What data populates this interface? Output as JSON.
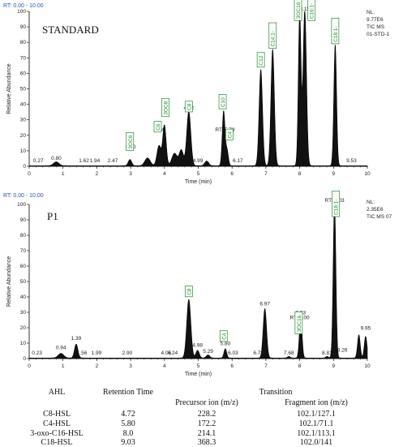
{
  "chart_data": [
    {
      "type": "line",
      "rt_range": "RT: 0.00 - 10.00",
      "title": "STANDARD",
      "info": [
        "NL:",
        "9.77E6",
        "TIC  MS",
        "01-STD-1"
      ],
      "xlabel": "Time (min)",
      "ylabel": "Relative Abundance",
      "xlim": [
        0,
        10
      ],
      "ylim": [
        0,
        100
      ],
      "xticks": [
        0,
        1,
        2,
        3,
        4,
        5,
        6,
        7,
        8,
        9,
        10
      ],
      "yticks": [
        0,
        10,
        20,
        30,
        40,
        50,
        60,
        70,
        80,
        90,
        100
      ],
      "rt_labels": [
        {
          "x": 0.27,
          "y": 1,
          "text": "0.27"
        },
        {
          "x": 0.8,
          "y": 2.5,
          "text": "0.80"
        },
        {
          "x": 1.62,
          "y": 1,
          "text": "1.62"
        },
        {
          "x": 1.94,
          "y": 1,
          "text": "1.94"
        },
        {
          "x": 2.47,
          "y": 1,
          "text": "2.47"
        },
        {
          "x": 3.0,
          "y": 10,
          "text": "3.00"
        },
        {
          "x": 3.84,
          "y": 21,
          "text": "3.84"
        },
        {
          "x": 4.72,
          "y": 35,
          "text": "4.72"
        },
        {
          "x": 4.99,
          "y": 1,
          "text": "4.99"
        },
        {
          "x": 5.79,
          "y": 21,
          "text": "RT: 5.79"
        },
        {
          "x": 6.17,
          "y": 1,
          "text": "6.17"
        },
        {
          "x": 8.15,
          "y": 99,
          "text": "8.15"
        },
        {
          "x": 9.53,
          "y": 1,
          "text": "9.53"
        }
      ],
      "compound_labels": [
        {
          "x": 2.98,
          "y": 8,
          "text": "3OC6"
        },
        {
          "x": 3.8,
          "y": 20,
          "text": "C6"
        },
        {
          "x": 4.03,
          "y": 30,
          "text": "3OC8"
        },
        {
          "x": 4.72,
          "y": 33,
          "text": "C8"
        },
        {
          "x": 5.72,
          "y": 35,
          "text": "C10"
        },
        {
          "x": 5.92,
          "y": 15,
          "text": "C4"
        },
        {
          "x": 6.85,
          "y": 62,
          "text": "C12"
        },
        {
          "x": 7.2,
          "y": 74,
          "text": "C14:1-"
        },
        {
          "x": 7.95,
          "y": 92,
          "text": "3OC16"
        },
        {
          "x": 8.35,
          "y": 92,
          "text": "C16:1-"
        },
        {
          "x": 9.05,
          "y": 77,
          "text": "C18:1-"
        }
      ],
      "peaks": [
        {
          "rt": 0.8,
          "height": 2.5,
          "width": 0.08
        },
        {
          "rt": 2.98,
          "height": 4,
          "width": 0.05
        },
        {
          "rt": 3.5,
          "height": 5,
          "width": 0.08
        },
        {
          "rt": 3.84,
          "height": 13,
          "width": 0.06
        },
        {
          "rt": 4.0,
          "height": 26,
          "width": 0.05
        },
        {
          "rt": 4.3,
          "height": 8,
          "width": 0.08
        },
        {
          "rt": 4.5,
          "height": 10,
          "width": 0.06
        },
        {
          "rt": 4.72,
          "height": 35,
          "width": 0.06
        },
        {
          "rt": 5.25,
          "height": 3,
          "width": 0.06
        },
        {
          "rt": 5.75,
          "height": 35,
          "width": 0.04
        },
        {
          "rt": 5.85,
          "height": 10,
          "width": 0.04
        },
        {
          "rt": 6.85,
          "height": 62,
          "width": 0.05
        },
        {
          "rt": 7.2,
          "height": 75,
          "width": 0.05
        },
        {
          "rt": 8.0,
          "height": 98,
          "width": 0.04
        },
        {
          "rt": 8.15,
          "height": 100,
          "width": 0.05
        },
        {
          "rt": 9.05,
          "height": 78,
          "width": 0.04
        }
      ]
    },
    {
      "type": "line",
      "rt_range": "RT: 0.00 - 10.00",
      "title": "P1",
      "info": [
        "NL:",
        "2.35E6",
        "TIC  MS 07"
      ],
      "xlabel": "Time (min)",
      "ylabel": "Relative Abundance",
      "xlim": [
        0,
        10
      ],
      "ylim": [
        0,
        100
      ],
      "xticks": [
        0,
        1,
        2,
        3,
        4,
        5,
        6,
        7,
        8,
        9,
        10
      ],
      "yticks": [
        0,
        10,
        20,
        30,
        40,
        50,
        60,
        70,
        80,
        90,
        100
      ],
      "rt_labels": [
        {
          "x": 0.23,
          "y": 1,
          "text": "0.23"
        },
        {
          "x": 0.94,
          "y": 4.5,
          "text": "0.94"
        },
        {
          "x": 1.39,
          "y": 10.5,
          "text": "1.39"
        },
        {
          "x": 1.56,
          "y": 1,
          "text": "1.56"
        },
        {
          "x": 1.99,
          "y": 1,
          "text": "1.99"
        },
        {
          "x": 2.9,
          "y": 1,
          "text": "2.90"
        },
        {
          "x": 4.05,
          "y": 1,
          "text": "4.05"
        },
        {
          "x": 4.24,
          "y": 1,
          "text": "4.24"
        },
        {
          "x": 4.98,
          "y": 6,
          "text": "4.98"
        },
        {
          "x": 5.29,
          "y": 2,
          "text": "5.29"
        },
        {
          "x": 5.8,
          "y": 7,
          "text": "5.80"
        },
        {
          "x": 6.03,
          "y": 1,
          "text": "6.03"
        },
        {
          "x": 6.78,
          "y": 1,
          "text": "6.78"
        },
        {
          "x": 6.97,
          "y": 33,
          "text": "6.97"
        },
        {
          "x": 7.68,
          "y": 1,
          "text": "7.68"
        },
        {
          "x": 8.0,
          "y": 24,
          "text": "RT: 8.00"
        },
        {
          "x": 8.03,
          "y": 27,
          "text": "8.03"
        },
        {
          "x": 8.81,
          "y": 1,
          "text": "8.81"
        },
        {
          "x": 9.03,
          "y": 100,
          "text": "RT: 9.03"
        },
        {
          "x": 9.26,
          "y": 3,
          "text": "9.26"
        },
        {
          "x": 9.95,
          "y": 17,
          "text": "9.95"
        }
      ],
      "compound_labels": [
        {
          "x": 4.72,
          "y": 38,
          "text": "C8"
        },
        {
          "x": 5.75,
          "y": 9,
          "text": "C4"
        },
        {
          "x": 7.97,
          "y": 14,
          "text": "3OC16"
        },
        {
          "x": 9.07,
          "y": 90,
          "text": "C18:1-"
        }
      ],
      "peaks": [
        {
          "rt": 0.94,
          "height": 3,
          "width": 0.08
        },
        {
          "rt": 1.39,
          "height": 9,
          "width": 0.05
        },
        {
          "rt": 4.72,
          "height": 38,
          "width": 0.06
        },
        {
          "rt": 4.98,
          "height": 5,
          "width": 0.05
        },
        {
          "rt": 5.29,
          "height": 2,
          "width": 0.05
        },
        {
          "rt": 5.8,
          "height": 6,
          "width": 0.04
        },
        {
          "rt": 6.97,
          "height": 32,
          "width": 0.05
        },
        {
          "rt": 7.68,
          "height": 1,
          "width": 0.04
        },
        {
          "rt": 8.03,
          "height": 26,
          "width": 0.04
        },
        {
          "rt": 8.81,
          "height": 1,
          "width": 0.04
        },
        {
          "rt": 9.03,
          "height": 100,
          "width": 0.04
        },
        {
          "rt": 9.75,
          "height": 15,
          "width": 0.04
        },
        {
          "rt": 9.95,
          "height": 14,
          "width": 0.04
        }
      ]
    }
  ],
  "table": {
    "headers": {
      "ahl": "AHL",
      "rt": "Retention Time",
      "transition": "Transition",
      "precursor": "Precursor ion (m/z)",
      "fragment": "Fragment ion (m/z)"
    },
    "rows": [
      {
        "ahl": "C8-HSL",
        "rt": "4.72",
        "precursor": "228.2",
        "fragment": "102.1/127.1"
      },
      {
        "ahl": "C4-HSL",
        "rt": "5.80",
        "precursor": "172.2",
        "fragment": "102.1/71.1"
      },
      {
        "ahl": "3-oxo-C16-HSL",
        "rt": "8.0",
        "precursor": "214.1",
        "fragment": "102.1/113.1"
      },
      {
        "ahl": "C18-HSL",
        "rt": "9.03",
        "precursor": "368.3",
        "fragment": "102.0/141"
      }
    ]
  }
}
